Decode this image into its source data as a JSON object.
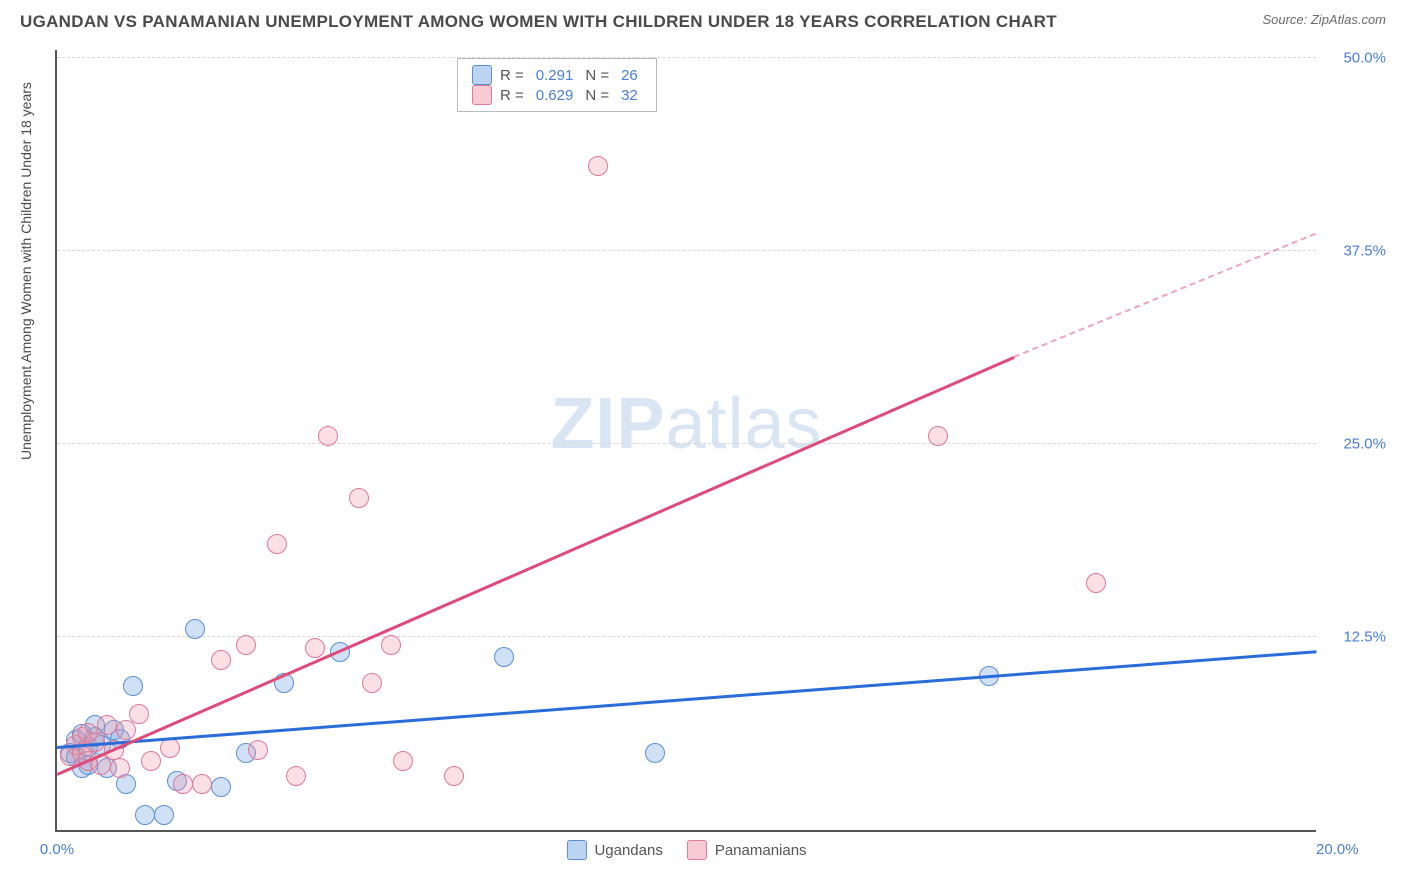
{
  "title": "UGANDAN VS PANAMANIAN UNEMPLOYMENT AMONG WOMEN WITH CHILDREN UNDER 18 YEARS CORRELATION CHART",
  "source": "Source: ZipAtlas.com",
  "y_axis_label": "Unemployment Among Women with Children Under 18 years",
  "watermark_a": "ZIP",
  "watermark_b": "atlas",
  "chart": {
    "type": "scatter",
    "xlim": [
      0,
      20
    ],
    "ylim": [
      0,
      50.5
    ],
    "x_ticks": [
      {
        "v": 0,
        "label": "0.0%"
      },
      {
        "v": 20,
        "label": "20.0%"
      }
    ],
    "y_ticks": [
      {
        "v": 12.5,
        "label": "12.5%"
      },
      {
        "v": 25.0,
        "label": "25.0%"
      },
      {
        "v": 37.5,
        "label": "37.5%"
      },
      {
        "v": 50.0,
        "label": "50.0%"
      }
    ],
    "grid_color": "#d8d8d8",
    "background_color": "#ffffff",
    "marker_radius": 10,
    "series": [
      {
        "key": "s1",
        "name": "Ugandans",
        "color_fill": "rgba(120,170,230,0.35)",
        "color_stroke": "#5a8fd8",
        "trend_color": "#2a6dd8",
        "R": "0.291",
        "N": "26",
        "trend": {
          "x1": 0,
          "y1": 5.3,
          "x2": 20,
          "y2": 11.5,
          "dash_from_x": 20
        },
        "points": [
          [
            0.2,
            5.0
          ],
          [
            0.3,
            5.8
          ],
          [
            0.3,
            4.7
          ],
          [
            0.4,
            6.2
          ],
          [
            0.5,
            5.4
          ],
          [
            0.5,
            4.2
          ],
          [
            0.6,
            6.0
          ],
          [
            0.7,
            5.5
          ],
          [
            0.8,
            4.0
          ],
          [
            0.9,
            6.5
          ],
          [
            1.0,
            5.9
          ],
          [
            1.1,
            3.0
          ],
          [
            1.2,
            9.3
          ],
          [
            1.4,
            1.0
          ],
          [
            1.7,
            1.0
          ],
          [
            1.9,
            3.2
          ],
          [
            2.2,
            13.0
          ],
          [
            2.6,
            2.8
          ],
          [
            3.0,
            5.0
          ],
          [
            3.6,
            9.5
          ],
          [
            4.5,
            11.5
          ],
          [
            7.1,
            11.2
          ],
          [
            9.5,
            5.0
          ],
          [
            14.8,
            10.0
          ],
          [
            0.4,
            4.0
          ],
          [
            0.6,
            6.8
          ]
        ]
      },
      {
        "key": "s2",
        "name": "Panamanians",
        "color_fill": "rgba(240,150,170,0.3)",
        "color_stroke": "#e07a9a",
        "trend_color": "#e04a7a",
        "R": "0.629",
        "N": "32",
        "trend": {
          "x1": 0,
          "y1": 3.5,
          "x2": 15.2,
          "y2": 30.5,
          "dash_from_x": 15.2,
          "x3": 20,
          "y3": 38.5
        },
        "points": [
          [
            0.2,
            4.8
          ],
          [
            0.3,
            5.5
          ],
          [
            0.4,
            6.0
          ],
          [
            0.4,
            5.0
          ],
          [
            0.5,
            4.5
          ],
          [
            0.5,
            6.3
          ],
          [
            0.6,
            5.7
          ],
          [
            0.7,
            4.2
          ],
          [
            0.8,
            6.8
          ],
          [
            0.9,
            5.2
          ],
          [
            1.0,
            4.0
          ],
          [
            1.1,
            6.5
          ],
          [
            1.3,
            7.5
          ],
          [
            1.5,
            4.5
          ],
          [
            1.8,
            5.3
          ],
          [
            2.0,
            3.0
          ],
          [
            2.3,
            3.0
          ],
          [
            2.6,
            11.0
          ],
          [
            3.0,
            12.0
          ],
          [
            3.2,
            5.2
          ],
          [
            3.5,
            18.5
          ],
          [
            3.8,
            3.5
          ],
          [
            4.1,
            11.8
          ],
          [
            4.3,
            25.5
          ],
          [
            4.8,
            21.5
          ],
          [
            5.0,
            9.5
          ],
          [
            5.3,
            12.0
          ],
          [
            5.5,
            4.5
          ],
          [
            6.3,
            3.5
          ],
          [
            8.6,
            43.0
          ],
          [
            14.0,
            25.5
          ],
          [
            16.5,
            16.0
          ]
        ]
      }
    ],
    "legend_labels": {
      "R": "R  =",
      "N": "N  ="
    }
  }
}
